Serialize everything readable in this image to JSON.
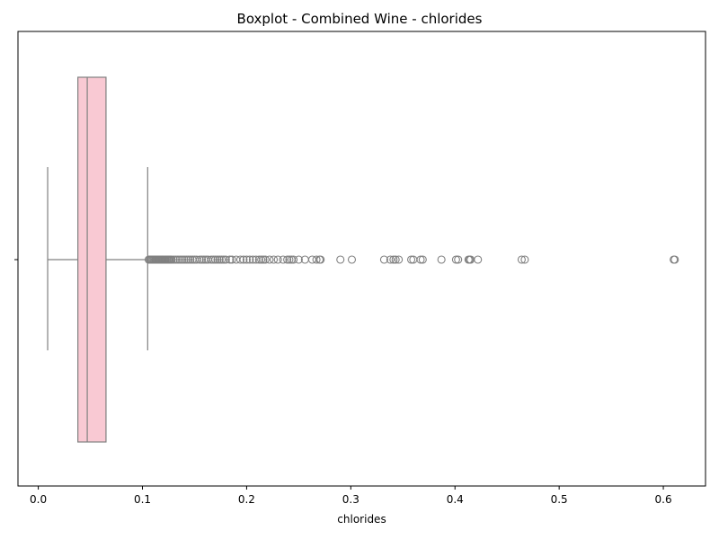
{
  "chart_data": {
    "type": "boxplot",
    "title": "Boxplot - Combined Wine - chlorides",
    "xlabel": "chlorides",
    "ylabel": "",
    "xlim": [
      -0.0195,
      0.6405
    ],
    "x_ticks": [
      0.0,
      0.1,
      0.2,
      0.3,
      0.4,
      0.5,
      0.6
    ],
    "x_tick_labels": [
      "0.0",
      "0.1",
      "0.2",
      "0.3",
      "0.4",
      "0.5",
      "0.6"
    ],
    "orientation": "horizontal",
    "grid": false,
    "legend": "none",
    "box": {
      "whisker_low": 0.009,
      "q1": 0.038,
      "median": 0.047,
      "q3": 0.065,
      "whisker_high": 0.105
    },
    "outliers": [
      0.106,
      0.107,
      0.108,
      0.109,
      0.11,
      0.111,
      0.112,
      0.113,
      0.114,
      0.115,
      0.116,
      0.117,
      0.118,
      0.119,
      0.12,
      0.121,
      0.122,
      0.123,
      0.124,
      0.125,
      0.126,
      0.127,
      0.128,
      0.13,
      0.132,
      0.134,
      0.136,
      0.138,
      0.14,
      0.142,
      0.144,
      0.146,
      0.148,
      0.15,
      0.152,
      0.155,
      0.157,
      0.159,
      0.161,
      0.163,
      0.166,
      0.168,
      0.17,
      0.172,
      0.174,
      0.176,
      0.178,
      0.18,
      0.184,
      0.186,
      0.19,
      0.194,
      0.197,
      0.2,
      0.203,
      0.206,
      0.209,
      0.212,
      0.214,
      0.216,
      0.218,
      0.222,
      0.226,
      0.23,
      0.235,
      0.239,
      0.241,
      0.243,
      0.245,
      0.25,
      0.256,
      0.263,
      0.267,
      0.27,
      0.271,
      0.29,
      0.301,
      0.332,
      0.338,
      0.341,
      0.343,
      0.346,
      0.358,
      0.36,
      0.367,
      0.369,
      0.387,
      0.401,
      0.403,
      0.413,
      0.414,
      0.415,
      0.422,
      0.464,
      0.467,
      0.61,
      0.611
    ],
    "colors": {
      "box_fill": "#f9c9d3",
      "line": "#808080",
      "outlier_edge": "#808080"
    }
  }
}
